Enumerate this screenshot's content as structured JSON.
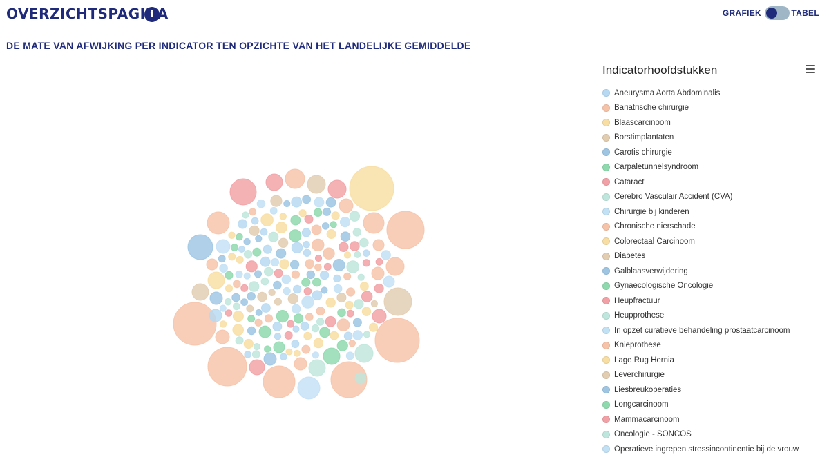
{
  "header": {
    "title": "OVERZICHTSPAGINA",
    "info_icon": "info-icon",
    "toggle_left_label": "GRAFIEK",
    "toggle_right_label": "TABEL"
  },
  "subtitle": "DE MATE VAN AFWIJKING PER INDICATOR TEN OPZICHTE VAN HET LANDELIJKE GEMIDDELDE",
  "legend": {
    "title": "Indicatorhoofdstukken",
    "menu_icon": "hamburger-menu-icon",
    "items": [
      {
        "label": "Aneurysma Aorta Abdominalis",
        "color": "#b7d9f2"
      },
      {
        "label": "Bariatrische chirurgie",
        "color": "#f6c3a9"
      },
      {
        "label": "Blaascarcinoom",
        "color": "#f8dea3"
      },
      {
        "label": "Borstimplantaten",
        "color": "#e2cdb1"
      },
      {
        "label": "Carotis chirurgie",
        "color": "#9ec6e3"
      },
      {
        "label": "Carpaletunnelsyndroom",
        "color": "#8fd9ae"
      },
      {
        "label": "Cataract",
        "color": "#f1a1a5"
      },
      {
        "label": "Cerebro Vasculair Accident (CVA)",
        "color": "#bfe6dc"
      },
      {
        "label": "Chirurgie bij kinderen",
        "color": "#c3e1f5"
      },
      {
        "label": "Chronische nierschade",
        "color": "#f6c3a9"
      },
      {
        "label": "Colorectaal Carcinoom",
        "color": "#f8dea3"
      },
      {
        "label": "Diabetes",
        "color": "#e2cdb1"
      },
      {
        "label": "Galblaasverwijdering",
        "color": "#9ec6e3"
      },
      {
        "label": "Gynaecologische Oncologie",
        "color": "#8fd9ae"
      },
      {
        "label": "Heupfractuur",
        "color": "#f1a1a5"
      },
      {
        "label": "Heupprothese",
        "color": "#bfe6dc"
      },
      {
        "label": "In opzet curatieve behandeling prostaatcarcinoom",
        "color": "#c3e1f5"
      },
      {
        "label": "Knieprothese",
        "color": "#f6c3a9"
      },
      {
        "label": "Lage Rug Hernia",
        "color": "#f8dea3"
      },
      {
        "label": "Leverchirurgie",
        "color": "#e2cdb1"
      },
      {
        "label": "Liesbreukoperaties",
        "color": "#9ec6e3"
      },
      {
        "label": "Longcarcinoom",
        "color": "#8fd9ae"
      },
      {
        "label": "Mammacarcinoom",
        "color": "#f1a1a5"
      },
      {
        "label": "Oncologie - SONCOS",
        "color": "#bfe6dc"
      },
      {
        "label": "Operatieve ingrepen stressincontinentie bij de vrouw",
        "color": "#c3e1f5"
      }
    ]
  },
  "chart_data": {
    "type": "bubble",
    "series_colors": [
      "#b7d9f2",
      "#f6c3a9",
      "#f8dea3",
      "#e2cdb1",
      "#9ec6e3",
      "#8fd9ae",
      "#f1a1a5",
      "#bfe6dc",
      "#c3e1f5"
    ]
  }
}
